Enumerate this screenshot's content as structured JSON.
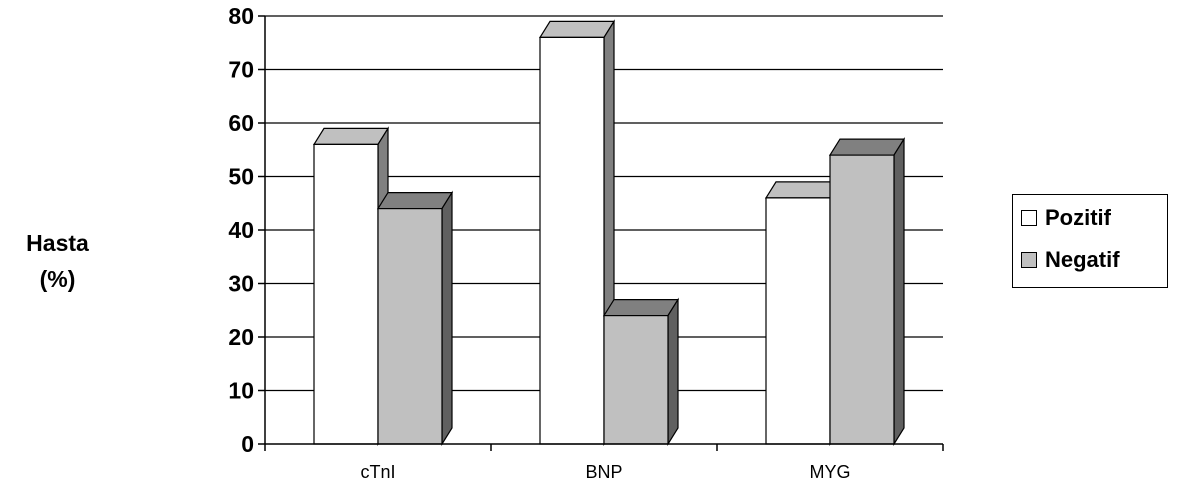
{
  "chart_data": {
    "type": "bar",
    "categories": [
      "cTnI",
      "BNP",
      "MYG"
    ],
    "series": [
      {
        "name": "Pozitif",
        "values": [
          56,
          76,
          46
        ],
        "color": "#ffffff"
      },
      {
        "name": "Negatif",
        "values": [
          44,
          24,
          54
        ],
        "color": "#c0c0c0"
      }
    ],
    "ylabel": [
      "Hasta",
      "(%)"
    ],
    "ylim": [
      0,
      80
    ],
    "yticks": [
      0,
      10,
      20,
      30,
      40,
      50,
      60,
      70,
      80
    ],
    "grid": true,
    "legend_position": "right",
    "style": "3d-column"
  }
}
